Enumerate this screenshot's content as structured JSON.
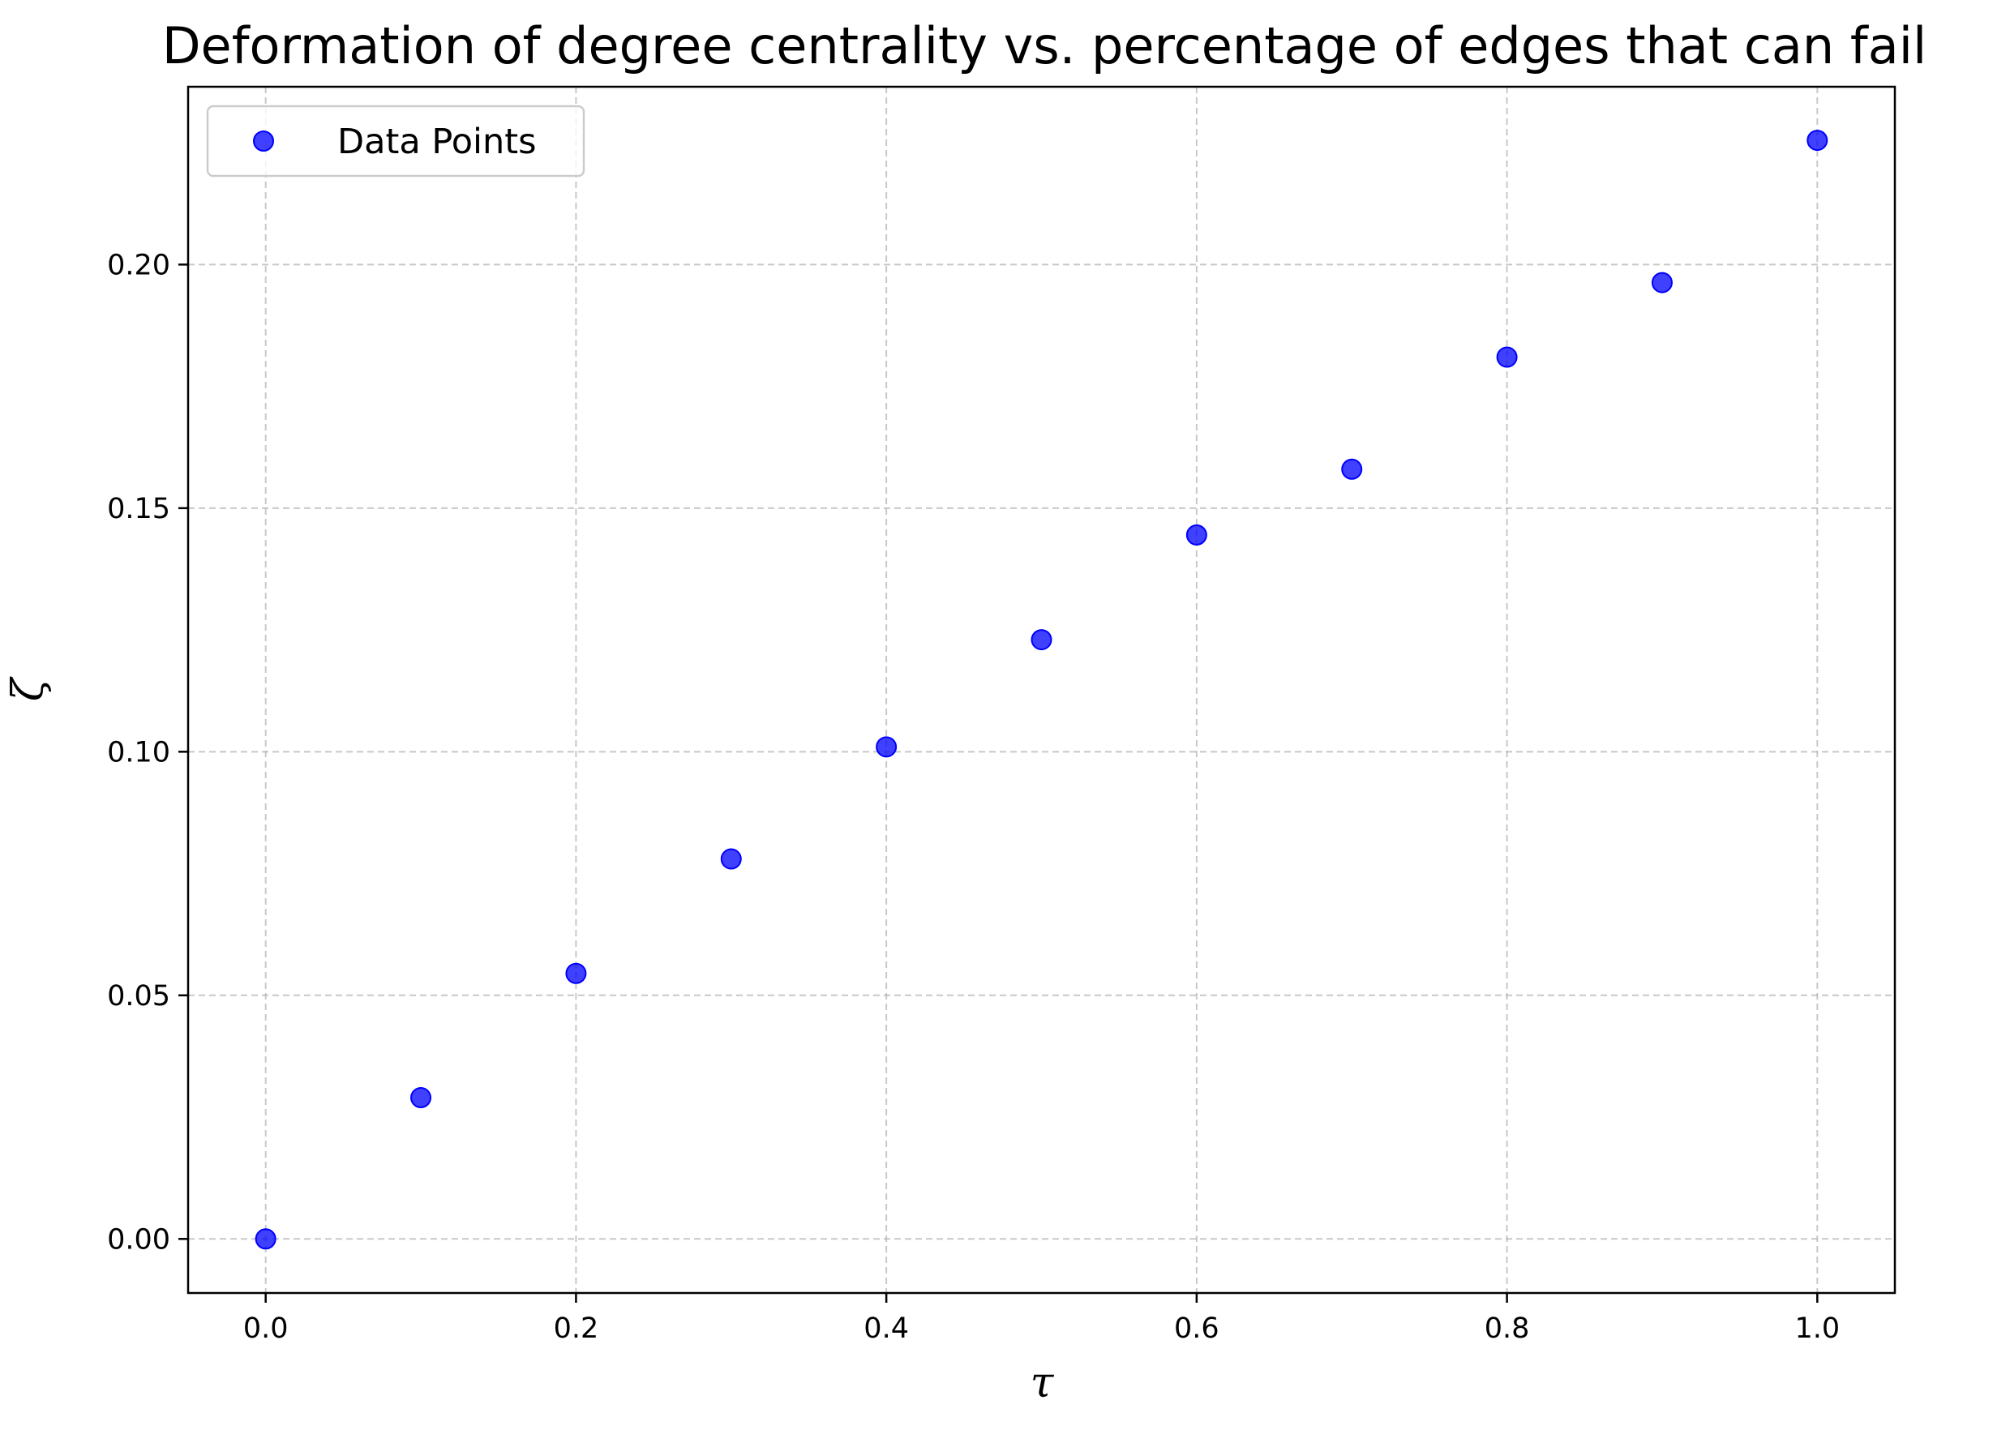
{
  "chart_data": {
    "type": "scatter",
    "title": "Deformation of degree centrality vs. percentage of edges that can fail",
    "xlabel": "τ",
    "ylabel": "ζ",
    "xlim": [
      -0.05,
      1.05
    ],
    "ylim": [
      -0.0111,
      0.2365
    ],
    "x_ticks": [
      0.0,
      0.2,
      0.4,
      0.6,
      0.8,
      1.0
    ],
    "x_tick_labels": [
      "0.0",
      "0.2",
      "0.4",
      "0.6",
      "0.8",
      "1.0"
    ],
    "y_ticks": [
      0.0,
      0.05,
      0.1,
      0.15,
      0.2
    ],
    "y_tick_labels": [
      "0.00",
      "0.05",
      "0.10",
      "0.15",
      "0.20"
    ],
    "grid": true,
    "legend_position": "top-left",
    "series": [
      {
        "name": "Data Points",
        "color": "#0000ff",
        "x": [
          0.0,
          0.1,
          0.2,
          0.3,
          0.4,
          0.5,
          0.6,
          0.7,
          0.8,
          0.9,
          1.0
        ],
        "y": [
          0.0,
          0.029,
          0.0545,
          0.078,
          0.101,
          0.123,
          0.1445,
          0.158,
          0.181,
          0.1963,
          0.2255
        ]
      }
    ]
  }
}
